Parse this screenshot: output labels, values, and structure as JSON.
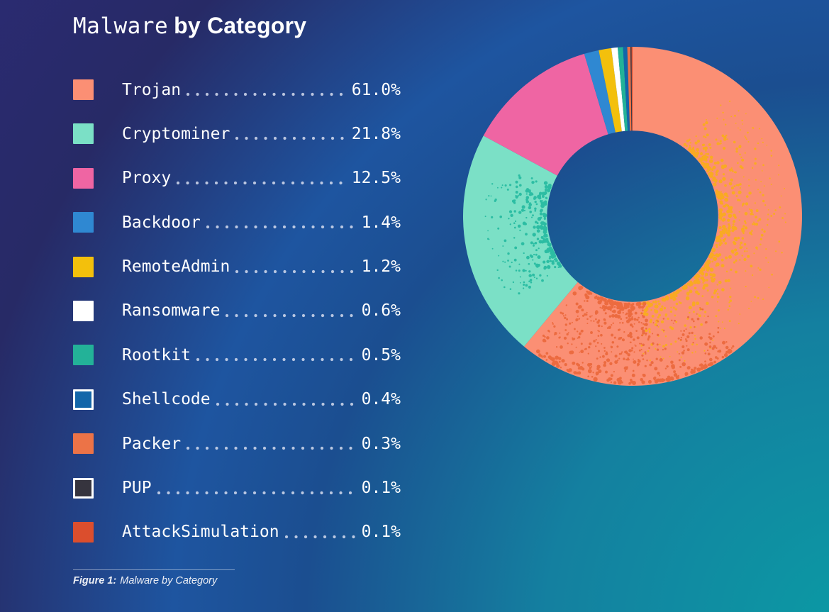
{
  "title": {
    "mono": "Malware",
    "bold": "by Category"
  },
  "caption": {
    "prefix": "Figure 1:",
    "text": "Malware by Category"
  },
  "background": {
    "corner_teal": "#0B9AA4",
    "mid_blue": "#1B4E90",
    "upper_blue": "#1E55A0",
    "indigo": "#272A66",
    "deep_indigo": "#2B2B73"
  },
  "chart_data": {
    "type": "pie",
    "subtype": "donut",
    "title": "Malware by Category",
    "legend_position": "left",
    "donut": {
      "inner_ratio": 0.505,
      "start_angle_deg": 0,
      "direction": "clockwise"
    },
    "categories": [
      "Trojan",
      "Cryptominer",
      "Proxy",
      "Backdoor",
      "RemoteAdmin",
      "Ransomware",
      "Rootkit",
      "Shellcode",
      "Packer",
      "PUP",
      "AttackSimulation"
    ],
    "values": [
      61.0,
      21.8,
      12.5,
      1.4,
      1.2,
      0.6,
      0.5,
      0.4,
      0.3,
      0.1,
      0.1
    ],
    "slices": [
      {
        "label": "Trojan",
        "value": 61.0,
        "pct_label": "61.0%",
        "color": "#FB8F74"
      },
      {
        "label": "Cryptominer",
        "value": 21.8,
        "pct_label": "21.8%",
        "color": "#7BE0C6"
      },
      {
        "label": "Proxy",
        "value": 12.5,
        "pct_label": "12.5%",
        "color": "#EF65A3"
      },
      {
        "label": "Backdoor",
        "value": 1.4,
        "pct_label": "1.4%",
        "color": "#2F88D2"
      },
      {
        "label": "RemoteAdmin",
        "value": 1.2,
        "pct_label": "1.2%",
        "color": "#F3C00C"
      },
      {
        "label": "Ransomware",
        "value": 0.6,
        "pct_label": "0.6%",
        "color": "#FFFFFF"
      },
      {
        "label": "Rootkit",
        "value": 0.5,
        "pct_label": "0.5%",
        "color": "#23B298"
      },
      {
        "label": "Shellcode",
        "value": 0.4,
        "pct_label": "0.4%",
        "color": "#1366A9",
        "swatch_border": "#FFFFFF"
      },
      {
        "label": "Packer",
        "value": 0.3,
        "pct_label": "0.3%",
        "color": "#EC7347"
      },
      {
        "label": "PUP",
        "value": 0.1,
        "pct_label": "0.1%",
        "color": "#36343E",
        "swatch_border": "#FFFFFF"
      },
      {
        "label": "AttackSimulation",
        "value": 0.1,
        "pct_label": "0.1%",
        "color": "#DB4E2D"
      }
    ],
    "texture": {
      "yellow_dots": "#F9AC1E",
      "deep_orange_dots": "#EC6A3E",
      "deep_teal_dots": "#28BCA2"
    }
  }
}
